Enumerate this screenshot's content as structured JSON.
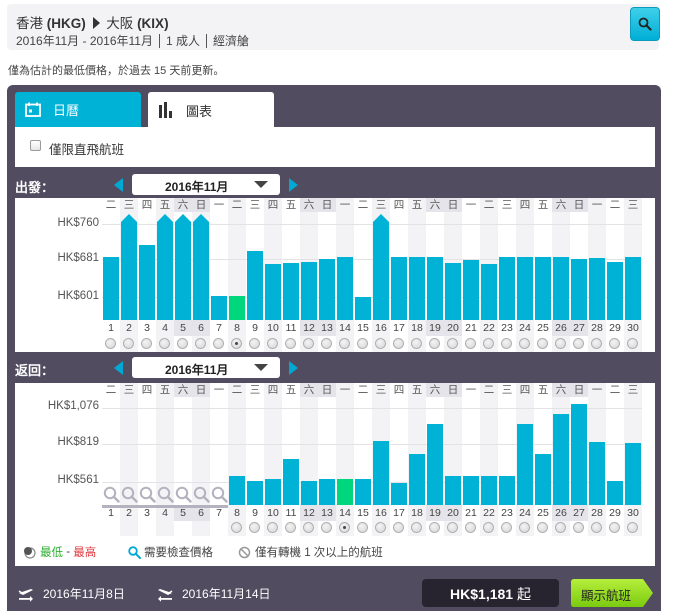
{
  "header": {
    "origin": "香港",
    "origin_code": "(HKG)",
    "destination": "大阪",
    "destination_code": "(KIX)",
    "date_range": "2016年11月 - 2016年11月",
    "passengers": "1 成人",
    "cabin": "經濟艙",
    "search_icon": "search-icon"
  },
  "notice": "僅為估計的最低價格，於過去 15 天前更新。",
  "tabs": [
    {
      "label": "日曆",
      "icon": "calendar-icon",
      "active": false
    },
    {
      "label": "圖表",
      "icon": "bar-chart-icon",
      "active": true
    }
  ],
  "filter": {
    "direct_only_label": "僅限直飛航班",
    "checked": false
  },
  "colors": {
    "panel": "#514c60",
    "bar": "#00b2d6",
    "lowest_bar": "#00d67c",
    "accent": "#00b2d6",
    "low_text": "#2fae33",
    "high_text": "#e0393e",
    "show_button": "#8fd91a"
  },
  "departure": {
    "label": "出發：",
    "month": "2016年11月",
    "y_ticks": [
      "HK$760",
      "HK$681",
      "HK$601"
    ],
    "selected_day": 8
  },
  "return": {
    "label": "返回：",
    "month": "2016年11月",
    "y_ticks": [
      "HK$1,076",
      "HK$819",
      "HK$561"
    ],
    "selected_day": 14
  },
  "weekdays": [
    "二",
    "三",
    "四",
    "五",
    "六",
    "日",
    "一",
    "二",
    "三",
    "四",
    "五",
    "六",
    "日",
    "一",
    "二",
    "三",
    "四",
    "五",
    "六",
    "日",
    "一",
    "二",
    "三",
    "四",
    "五",
    "六",
    "日",
    "一",
    "二",
    "三"
  ],
  "legend": {
    "low": "最低",
    "dash": " - ",
    "high": "最高",
    "check_price": "需要檢查價格",
    "transfer_only": "僅有轉機 1 次以上的航班"
  },
  "footer": {
    "depart_date": "2016年11月8日",
    "return_date": "2016年11月14日",
    "price": "HK$1,181",
    "price_suffix": "起",
    "show_flights": "顯示航班"
  },
  "chart_data": [
    {
      "type": "bar",
      "title": "出發 2016年11月",
      "xlabel": "",
      "ylabel": "",
      "categories": [
        "1",
        "2",
        "3",
        "4",
        "5",
        "6",
        "7",
        "8",
        "9",
        "10",
        "11",
        "12",
        "13",
        "14",
        "15",
        "16",
        "17",
        "18",
        "19",
        "20",
        "21",
        "22",
        "23",
        "24",
        "25",
        "26",
        "27",
        "28",
        "29",
        "30"
      ],
      "values": [
        681,
        770,
        705,
        770,
        770,
        770,
        600,
        600,
        693,
        667,
        669,
        671,
        676,
        681,
        598,
        770,
        681,
        681,
        681,
        669,
        675,
        667,
        681,
        681,
        681,
        681,
        677,
        679,
        671,
        681
      ],
      "capped_days": [
        2,
        4,
        5,
        6,
        16
      ],
      "lowest_day": 8,
      "y_ticks": [
        601,
        681,
        760
      ],
      "ylim": [
        551,
        770
      ],
      "grid": true
    },
    {
      "type": "bar",
      "title": "返回 2016年11月",
      "xlabel": "",
      "ylabel": "",
      "categories": [
        "1",
        "2",
        "3",
        "4",
        "5",
        "6",
        "7",
        "8",
        "9",
        "10",
        "11",
        "12",
        "13",
        "14",
        "15",
        "16",
        "17",
        "18",
        "19",
        "20",
        "21",
        "22",
        "23",
        "24",
        "25",
        "26",
        "27",
        "28",
        "29",
        "30"
      ],
      "values": [
        null,
        null,
        null,
        null,
        null,
        null,
        null,
        589,
        554,
        568,
        700,
        554,
        568,
        568,
        568,
        819,
        547,
        735,
        930,
        589,
        589,
        589,
        589,
        930,
        735,
        993,
        1055,
        812,
        554,
        805
      ],
      "needs_check_days": [
        1,
        2,
        3,
        4,
        5,
        6,
        7
      ],
      "lowest_day": 14,
      "y_ticks": [
        561,
        819,
        1076
      ],
      "ylim": [
        401,
        1115
      ],
      "grid": true
    }
  ]
}
